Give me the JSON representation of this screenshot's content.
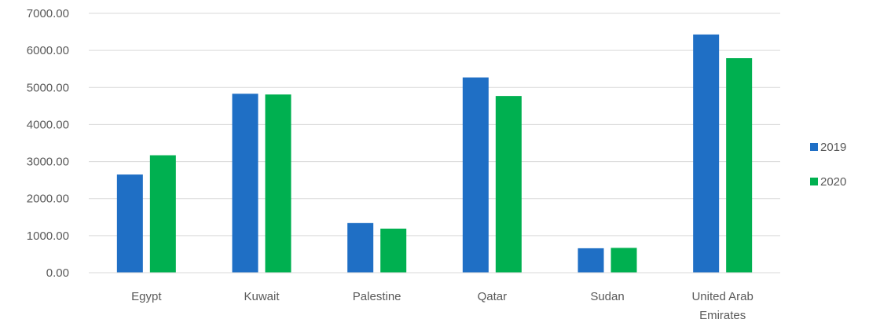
{
  "chart_data": {
    "type": "bar",
    "categories": [
      "Egypt",
      "Kuwait",
      "Palestine",
      "Qatar",
      "Sudan",
      "United Arab Emirates"
    ],
    "series": [
      {
        "name": "2019",
        "color": "#1F6FC5",
        "values": [
          2650,
          4830,
          1340,
          5270,
          660,
          6430
        ]
      },
      {
        "name": "2020",
        "color": "#00B050",
        "values": [
          3170,
          4810,
          1190,
          4770,
          670,
          5790
        ]
      }
    ],
    "ylim": [
      0,
      7000
    ],
    "yticks": [
      "0.00",
      "1000.00",
      "2000.00",
      "3000.00",
      "4000.00",
      "5000.00",
      "6000.00",
      "7000.00"
    ],
    "grid": true,
    "legend": "right",
    "title": "",
    "xlabel": "",
    "ylabel": ""
  }
}
